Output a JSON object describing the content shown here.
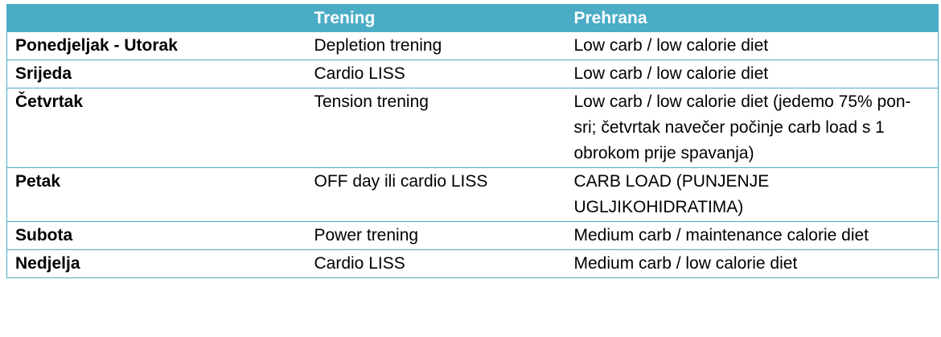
{
  "header": {
    "col_day": "",
    "col_training": "Trening",
    "col_diet": "Prehrana"
  },
  "rows": [
    {
      "day": "Ponedjeljak - Utorak",
      "training": "Depletion trening",
      "diet": "Low carb / low calorie diet"
    },
    {
      "day": "Srijeda",
      "training": "Cardio LISS",
      "diet": "Low carb / low calorie diet"
    },
    {
      "day": "Četvrtak",
      "training": "Tension trening",
      "diet": "Low carb / low calorie diet (jedemo 75% pon-sri; četvrtak navečer počinje carb load s 1 obrokom prije spavanja)"
    },
    {
      "day": "Petak",
      "training": "OFF day ili cardio LISS",
      "diet": "CARB LOAD (PUNJENJE UGLJIKOHIDRATIMA)"
    },
    {
      "day": "Subota",
      "training": "Power trening",
      "diet": "Medium carb / maintenance calorie diet"
    },
    {
      "day": "Nedjelja",
      "training": "Cardio LISS",
      "diet": "Medium carb / low calorie diet"
    }
  ],
  "colors": {
    "header_bg": "#4bacc6",
    "header_text": "#ffffff",
    "border": "#4bacc6"
  }
}
